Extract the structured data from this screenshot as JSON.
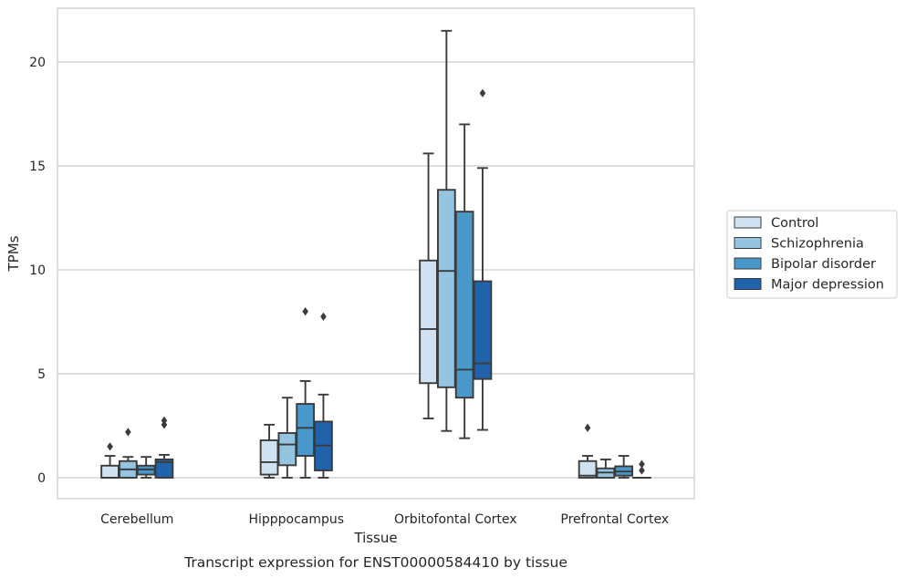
{
  "chart_data": {
    "type": "box",
    "title": "",
    "caption": "Transcript expression for ENST00000584410 by tissue",
    "xlabel": "Tissue",
    "ylabel": "TPMs",
    "ylim": [
      -1.05,
      22.6
    ],
    "yticks": [
      0,
      5,
      10,
      15,
      20
    ],
    "grid": "horizontal",
    "legend_position": "right",
    "categories": [
      "Cerebellum",
      "Hipppocampus",
      "Orbitofontal Cortex",
      "Prefrontal Cortex"
    ],
    "series": [
      {
        "name": "Control",
        "color": "#d0e1f2",
        "boxes": [
          {
            "whislo": 0,
            "q1": 0,
            "med": 0,
            "q3": 0.58,
            "whishi": 1.05,
            "fliers": [
              1.5
            ]
          },
          {
            "whislo": 0,
            "q1": 0.15,
            "med": 0.75,
            "q3": 1.8,
            "whishi": 2.55,
            "fliers": []
          },
          {
            "whislo": 2.85,
            "q1": 4.55,
            "med": 7.15,
            "q3": 10.45,
            "whishi": 15.6,
            "fliers": []
          },
          {
            "whislo": 0,
            "q1": 0,
            "med": 0.1,
            "q3": 0.8,
            "whishi": 1.05,
            "fliers": [
              2.4
            ]
          }
        ]
      },
      {
        "name": "Schizophrenia",
        "color": "#94c4df",
        "boxes": [
          {
            "whislo": 0,
            "q1": 0,
            "med": 0.4,
            "q3": 0.8,
            "whishi": 1.0,
            "fliers": [
              2.2
            ]
          },
          {
            "whislo": 0,
            "q1": 0.6,
            "med": 1.6,
            "q3": 2.15,
            "whishi": 3.85,
            "fliers": []
          },
          {
            "whislo": 2.25,
            "q1": 4.35,
            "med": 9.95,
            "q3": 13.85,
            "whishi": 21.5,
            "fliers": []
          },
          {
            "whislo": 0,
            "q1": 0,
            "med": 0.25,
            "q3": 0.45,
            "whishi": 0.88,
            "fliers": []
          }
        ]
      },
      {
        "name": "Bipolar disorder",
        "color": "#4a98c9",
        "boxes": [
          {
            "whislo": 0,
            "q1": 0.15,
            "med": 0.4,
            "q3": 0.58,
            "whishi": 1.0,
            "fliers": []
          },
          {
            "whislo": 0,
            "q1": 1.05,
            "med": 2.4,
            "q3": 3.55,
            "whishi": 4.65,
            "fliers": [
              8.0
            ]
          },
          {
            "whislo": 1.9,
            "q1": 3.85,
            "med": 5.2,
            "q3": 12.8,
            "whishi": 17.0,
            "fliers": []
          },
          {
            "whislo": 0,
            "q1": 0.1,
            "med": 0.3,
            "q3": 0.55,
            "whishi": 1.05,
            "fliers": []
          }
        ]
      },
      {
        "name": "Major depression",
        "color": "#2163aa",
        "boxes": [
          {
            "whislo": 0,
            "q1": 0,
            "med": 0.75,
            "q3": 0.88,
            "whishi": 1.1,
            "fliers": [
              2.55,
              2.75
            ]
          },
          {
            "whislo": 0,
            "q1": 0.35,
            "med": 1.55,
            "q3": 2.7,
            "whishi": 4.0,
            "fliers": [
              7.75
            ]
          },
          {
            "whislo": 2.3,
            "q1": 4.75,
            "med": 5.5,
            "q3": 9.45,
            "whishi": 14.9,
            "fliers": [
              18.5
            ]
          },
          {
            "whislo": 0,
            "q1": 0,
            "med": 0,
            "q3": 0,
            "whishi": 0,
            "fliers": [
              0.35,
              0.65
            ]
          }
        ]
      }
    ]
  }
}
